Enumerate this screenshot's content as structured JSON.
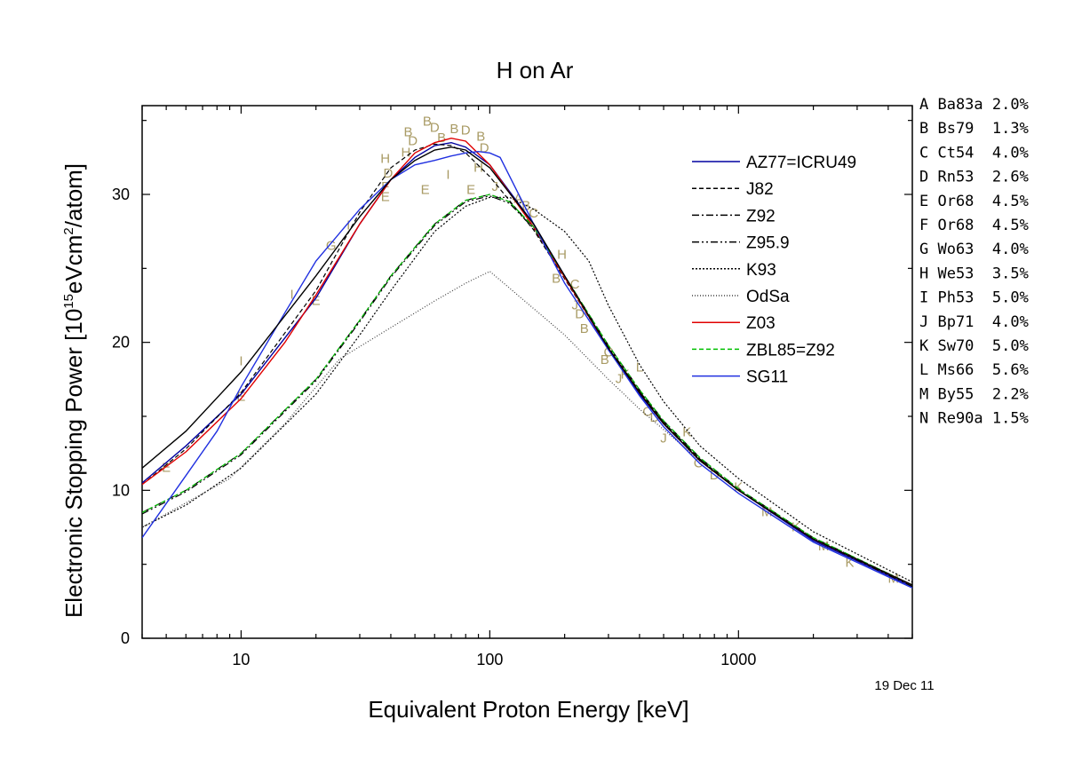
{
  "chart_data": {
    "type": "line",
    "title": "H on Ar",
    "xlabel": "Equivalent Proton Energy [keV]",
    "ylabel": "Electronic Stopping Power [10¹⁵eVcm²/atom]",
    "x_scale": "log",
    "xlim": [
      4,
      5000
    ],
    "ylim": [
      0,
      36
    ],
    "x_ticks": [
      10,
      100,
      1000
    ],
    "x_tick_labels": [
      "10",
      "100",
      "1000"
    ],
    "y_ticks": [
      0,
      10,
      20,
      30
    ],
    "y_tick_labels": [
      "0",
      "10",
      "20",
      "30"
    ],
    "grid": false,
    "legend_position": "top-right (inside plot)",
    "date": "19 Dec 11",
    "series": [
      {
        "name": "AZ77=ICRU49",
        "color": "#0000a0",
        "style": "solid",
        "x": [
          4,
          6,
          10,
          20,
          30,
          40,
          50,
          60,
          70,
          80,
          100,
          150,
          200,
          300,
          400,
          500,
          700,
          1000,
          2000,
          5000
        ],
        "y": [
          10.5,
          13.0,
          16.5,
          23.0,
          28.0,
          31.0,
          32.5,
          33.3,
          33.5,
          33.2,
          32.0,
          28.0,
          24.5,
          19.5,
          16.5,
          14.5,
          12.0,
          10.0,
          6.6,
          3.5
        ]
      },
      {
        "name": "J82",
        "color": "#000000",
        "style": "dashed",
        "x": [
          4,
          6,
          10,
          20,
          30,
          40,
          50,
          60,
          70,
          80,
          100,
          150,
          200,
          300,
          400,
          500,
          700,
          1000,
          2000,
          5000
        ],
        "y": [
          10.4,
          12.8,
          16.6,
          23.5,
          28.8,
          31.8,
          33.0,
          33.4,
          33.3,
          32.8,
          31.2,
          27.6,
          24.3,
          19.6,
          16.7,
          14.6,
          12.1,
          10.0,
          6.7,
          3.6
        ]
      },
      {
        "name": "Z92",
        "color": "#000000",
        "style": "dashdot",
        "x": [
          4,
          6,
          10,
          20,
          30,
          40,
          60,
          80,
          100,
          120,
          150,
          200,
          300,
          400,
          500,
          700,
          1000,
          2000,
          5000
        ],
        "y": [
          8.5,
          10.0,
          12.5,
          17.5,
          21.5,
          24.5,
          28.0,
          29.6,
          30.0,
          29.5,
          27.8,
          24.5,
          19.8,
          16.8,
          14.7,
          12.2,
          10.1,
          6.8,
          3.6
        ]
      },
      {
        "name": "Z95.9",
        "color": "#000000",
        "style": "dashdotdot",
        "x": [
          4,
          6,
          10,
          20,
          30,
          40,
          60,
          80,
          100,
          120,
          150,
          200,
          300,
          400,
          500,
          700,
          1000,
          2000,
          5000
        ],
        "y": [
          8.4,
          9.9,
          12.4,
          17.4,
          21.4,
          24.4,
          27.9,
          29.5,
          29.9,
          29.4,
          27.7,
          24.4,
          19.7,
          16.7,
          14.6,
          12.1,
          10.0,
          6.7,
          3.5
        ]
      },
      {
        "name": "K93",
        "color": "#000000",
        "style": "dotted",
        "x": [
          4,
          6,
          10,
          20,
          30,
          40,
          60,
          80,
          100,
          120,
          150,
          200,
          250,
          300,
          400,
          500,
          700,
          1000,
          2000,
          5000
        ],
        "y": [
          7.5,
          9.0,
          11.5,
          16.5,
          20.5,
          23.5,
          27.5,
          29.2,
          29.8,
          29.8,
          29.0,
          27.5,
          25.5,
          22.5,
          18.5,
          16.0,
          13.0,
          10.8,
          7.2,
          3.8
        ]
      },
      {
        "name": "OdSa",
        "color": "#404040",
        "style": "finedotted",
        "x": [
          4,
          9,
          15,
          25,
          40,
          60,
          80,
          100,
          200,
          300,
          400,
          700,
          1000,
          2000,
          5000
        ],
        "y": [
          7.5,
          10.8,
          14.5,
          18.9,
          21.0,
          22.8,
          24.0,
          24.8,
          20.5,
          17.5,
          15.5,
          12.0,
          10.0,
          6.8,
          3.6
        ]
      },
      {
        "name": "Z03",
        "color": "#e00000",
        "style": "solid",
        "x": [
          4,
          6,
          10,
          15,
          20,
          30,
          40,
          50,
          60,
          70,
          80,
          100,
          150,
          200,
          300,
          400,
          500,
          700,
          1000,
          2000,
          5000
        ],
        "y": [
          10.4,
          12.6,
          16.2,
          20.0,
          23.2,
          28.0,
          31.0,
          32.8,
          33.5,
          33.8,
          33.6,
          32.0,
          27.8,
          24.4,
          19.6,
          16.6,
          14.5,
          12.0,
          10.0,
          6.7,
          3.6
        ]
      },
      {
        "name": "ZBL85=Z92",
        "color": "#00c000",
        "style": "dashed",
        "x": [
          4,
          6,
          10,
          20,
          30,
          40,
          60,
          80,
          100,
          120,
          150,
          200,
          300,
          400,
          500,
          700,
          1000,
          2000,
          5000
        ],
        "y": [
          8.5,
          10.0,
          12.5,
          17.5,
          21.5,
          24.5,
          28.0,
          29.6,
          30.0,
          29.5,
          27.8,
          24.5,
          19.8,
          16.8,
          14.7,
          12.2,
          10.1,
          6.8,
          3.6
        ]
      },
      {
        "name": "SG11",
        "color": "#2030e0",
        "style": "solid",
        "x": [
          4,
          6,
          8,
          10,
          15,
          20,
          30,
          40,
          50,
          60,
          70,
          80,
          90,
          100,
          110,
          150,
          200,
          300,
          400,
          500,
          700,
          1000,
          2000,
          5000
        ],
        "y": [
          6.8,
          11.0,
          14.0,
          17.0,
          22.0,
          25.5,
          29.0,
          31.0,
          32.0,
          32.3,
          32.6,
          32.8,
          32.9,
          32.8,
          32.5,
          28.0,
          24.0,
          19.5,
          16.4,
          14.3,
          11.8,
          9.8,
          6.5,
          3.4
        ]
      },
      {
        "name": "",
        "color": "#000000",
        "style": "solid",
        "x": [
          4,
          6,
          10,
          20,
          30,
          40,
          50,
          60,
          70,
          80,
          100,
          150,
          200,
          300,
          400,
          500,
          700,
          1000,
          2000,
          5000
        ],
        "y": [
          11.5,
          14.0,
          18.0,
          24.5,
          28.5,
          31.0,
          32.3,
          33.0,
          33.2,
          33.0,
          31.8,
          28.0,
          24.5,
          19.6,
          16.6,
          14.5,
          12.0,
          10.0,
          6.7,
          3.6
        ]
      }
    ],
    "data_points": [
      {
        "label": "E",
        "x": 5,
        "y": 11.6
      },
      {
        "label": "E",
        "x": 10,
        "y": 16.4
      },
      {
        "label": "I",
        "x": 10,
        "y": 18.8
      },
      {
        "label": "I",
        "x": 16,
        "y": 23.3
      },
      {
        "label": "E",
        "x": 20,
        "y": 22.9
      },
      {
        "label": "G",
        "x": 23,
        "y": 26.6
      },
      {
        "label": "I",
        "x": 27,
        "y": 28.0
      },
      {
        "label": "E",
        "x": 38,
        "y": 29.9
      },
      {
        "label": "F",
        "x": 38,
        "y": 30.6
      },
      {
        "label": "D",
        "x": 39,
        "y": 31.5
      },
      {
        "label": "H",
        "x": 38,
        "y": 32.5
      },
      {
        "label": "H",
        "x": 46,
        "y": 32.9
      },
      {
        "label": "B",
        "x": 47,
        "y": 34.3
      },
      {
        "label": "D",
        "x": 49,
        "y": 33.7
      },
      {
        "label": "E",
        "x": 55,
        "y": 30.4
      },
      {
        "label": "B",
        "x": 56,
        "y": 35.0
      },
      {
        "label": "D",
        "x": 60,
        "y": 34.6
      },
      {
        "label": "B",
        "x": 64,
        "y": 33.9
      },
      {
        "label": "I",
        "x": 68,
        "y": 31.4
      },
      {
        "label": "B",
        "x": 72,
        "y": 34.5
      },
      {
        "label": "D",
        "x": 80,
        "y": 34.4
      },
      {
        "label": "E",
        "x": 84,
        "y": 30.4
      },
      {
        "label": "H",
        "x": 90,
        "y": 31.9
      },
      {
        "label": "B",
        "x": 92,
        "y": 34.0
      },
      {
        "label": "D",
        "x": 95,
        "y": 33.2
      },
      {
        "label": "J",
        "x": 105,
        "y": 30.6
      },
      {
        "label": "A",
        "x": 130,
        "y": 29.8
      },
      {
        "label": "B",
        "x": 140,
        "y": 29.3
      },
      {
        "label": "C",
        "x": 150,
        "y": 28.8
      },
      {
        "label": "H",
        "x": 195,
        "y": 26.0
      },
      {
        "label": "B",
        "x": 185,
        "y": 24.4
      },
      {
        "label": "C",
        "x": 220,
        "y": 24.0
      },
      {
        "label": "J",
        "x": 220,
        "y": 22.6
      },
      {
        "label": "D",
        "x": 230,
        "y": 22.0
      },
      {
        "label": "B",
        "x": 240,
        "y": 21.0
      },
      {
        "label": "C",
        "x": 300,
        "y": 19.4
      },
      {
        "label": "B",
        "x": 290,
        "y": 18.9
      },
      {
        "label": "K",
        "x": 350,
        "y": 17.9
      },
      {
        "label": "J",
        "x": 330,
        "y": 17.6
      },
      {
        "label": "L",
        "x": 400,
        "y": 18.4
      },
      {
        "label": "C",
        "x": 430,
        "y": 15.4
      },
      {
        "label": "D",
        "x": 460,
        "y": 15.0
      },
      {
        "label": "J",
        "x": 500,
        "y": 13.6
      },
      {
        "label": "K",
        "x": 620,
        "y": 14.0
      },
      {
        "label": "C",
        "x": 690,
        "y": 11.9
      },
      {
        "label": "D",
        "x": 800,
        "y": 11.1
      },
      {
        "label": "K",
        "x": 1000,
        "y": 10.3
      },
      {
        "label": "M",
        "x": 1300,
        "y": 8.6
      },
      {
        "label": "K",
        "x": 1700,
        "y": 7.6
      },
      {
        "label": "M",
        "x": 2200,
        "y": 6.3
      },
      {
        "label": "K",
        "x": 2800,
        "y": 5.2
      },
      {
        "label": "M",
        "x": 4200,
        "y": 4.1
      }
    ]
  },
  "legend": [
    {
      "label": "AZ77=ICRU49",
      "color": "#0000a0",
      "style": "solid"
    },
    {
      "label": "J82",
      "color": "#000000",
      "style": "dashed"
    },
    {
      "label": "Z92",
      "color": "#000000",
      "style": "dashdot"
    },
    {
      "label": "Z95.9",
      "color": "#000000",
      "style": "dashdotdot"
    },
    {
      "label": "K93",
      "color": "#000000",
      "style": "dotted"
    },
    {
      "label": "OdSa",
      "color": "#404040",
      "style": "finedotted"
    },
    {
      "label": "Z03",
      "color": "#e00000",
      "style": "solid"
    },
    {
      "label": "ZBL85=Z92",
      "color": "#00c000",
      "style": "dashed"
    },
    {
      "label": "SG11",
      "color": "#2030e0",
      "style": "solid"
    }
  ],
  "references": [
    {
      "letter": "A",
      "text": "Ba83a 2.0%"
    },
    {
      "letter": "B",
      "text": "Bs79  1.3%"
    },
    {
      "letter": "C",
      "text": "Ct54  4.0%"
    },
    {
      "letter": "D",
      "text": "Rn53  2.6%"
    },
    {
      "letter": "E",
      "text": "Or68  4.5%"
    },
    {
      "letter": "F",
      "text": "Or68  4.5%"
    },
    {
      "letter": "G",
      "text": "Wo63  4.0%"
    },
    {
      "letter": "H",
      "text": "We53  3.5%"
    },
    {
      "letter": "I",
      "text": "Ph53  5.0%"
    },
    {
      "letter": "J",
      "text": "Bp71  4.0%"
    },
    {
      "letter": "K",
      "text": "Sw70  5.0%"
    },
    {
      "letter": "L",
      "text": "Ms66  5.6%"
    },
    {
      "letter": "M",
      "text": "By55  2.2%"
    },
    {
      "letter": "N",
      "text": "Re90a 1.5%"
    }
  ]
}
